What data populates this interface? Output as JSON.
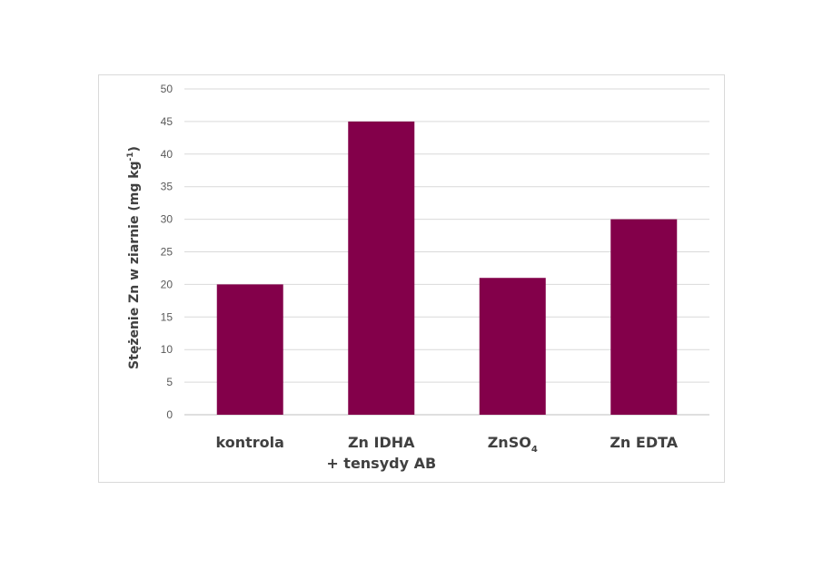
{
  "chart_data": {
    "type": "bar",
    "categories": [
      "kontrola",
      "Zn IDHA + tensydy AB",
      "ZnSO4",
      "Zn EDTA"
    ],
    "category_lines": [
      [
        "kontrola"
      ],
      [
        "Zn IDHA",
        "+ tensydy AB"
      ],
      [
        "ZnSO",
        "4"
      ],
      [
        "Zn EDTA"
      ]
    ],
    "values": [
      20,
      45,
      21,
      30
    ],
    "ylabel": {
      "main": "Stężenie Zn w ziarnie   (mg kg",
      "sup": "-1",
      "close": ")"
    },
    "ylim": [
      0,
      50
    ],
    "yticks": [
      "0",
      "5",
      "10",
      "15",
      "20",
      "25",
      "30",
      "35",
      "40",
      "45",
      "50"
    ],
    "grid": true,
    "legend": "none",
    "bar_color": "#83004a",
    "grid_color": "#d9d9d9",
    "axis_color": "#bfbfbf"
  }
}
